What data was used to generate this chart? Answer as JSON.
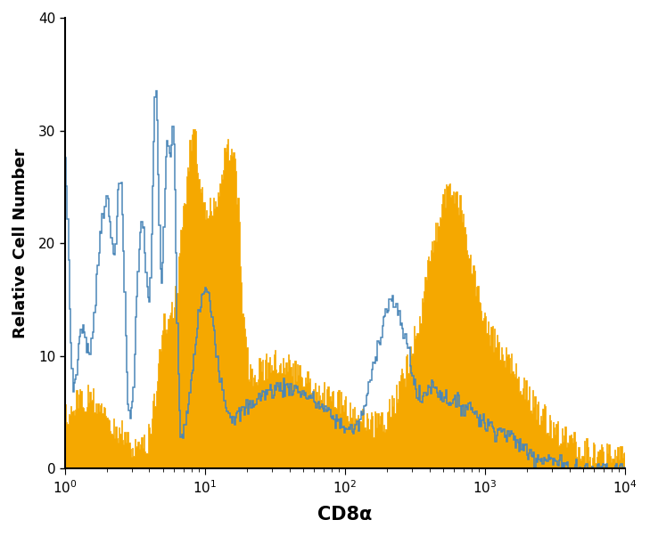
{
  "xlabel": "CD8α",
  "ylabel": "Relative Cell Number",
  "ylim": [
    0,
    40
  ],
  "yticks": [
    0,
    10,
    20,
    30,
    40
  ],
  "blue_color": "#4a86b8",
  "orange_color": "#f5a800",
  "background_color": "#ffffff",
  "figsize": [
    7.29,
    6.02
  ],
  "dpi": 100
}
